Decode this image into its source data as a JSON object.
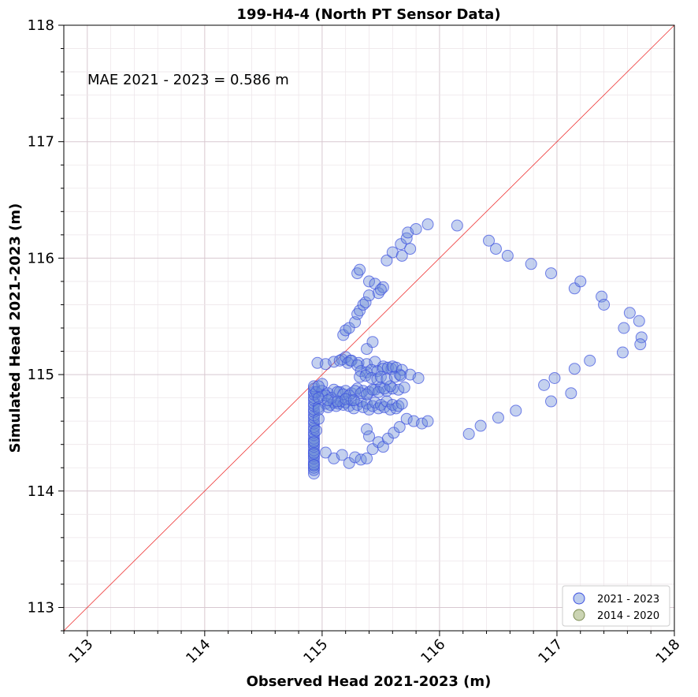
{
  "chart_data": {
    "type": "scatter",
    "title": "199-H4-4 (North PT Sensor Data)",
    "xlabel": "Observed Head 2021-2023 (m)",
    "ylabel": "Simulated Head 2021-2023 (m)",
    "xlim": [
      112.8,
      118
    ],
    "ylim": [
      112.8,
      118
    ],
    "xticks": [
      113,
      114,
      115,
      116,
      117,
      118
    ],
    "yticks": [
      113,
      114,
      115,
      116,
      117,
      118
    ],
    "grid": true,
    "annotation": "MAE 2021 - 2023 = 0.586 m",
    "legend_position": "lower-right",
    "reference_line": {
      "from": [
        112.8,
        112.8
      ],
      "to": [
        118,
        118
      ],
      "color": "#ee3333"
    },
    "series": [
      {
        "name": "2021 - 2023",
        "face_color": "#6b8dd6",
        "edge_color": "#3a4ee0",
        "x": [
          114.93,
          114.93,
          114.93,
          114.93,
          114.93,
          114.93,
          114.93,
          114.93,
          114.93,
          114.93,
          114.93,
          114.93,
          114.93,
          114.93,
          114.93,
          114.93,
          114.93,
          114.93,
          114.93,
          114.93,
          114.93,
          114.93,
          114.93,
          114.93,
          114.93,
          114.93,
          114.93,
          114.93,
          114.93,
          114.93,
          114.93,
          114.93,
          114.93,
          114.93,
          114.95,
          114.97,
          114.97,
          115.0,
          115.0,
          115.03,
          115.05,
          115.07,
          115.1,
          115.12,
          115.14,
          115.16,
          115.18,
          115.2,
          115.23,
          115.25,
          115.27,
          115.3,
          115.33,
          115.35,
          115.38,
          115.4,
          115.43,
          115.45,
          115.48,
          115.5,
          115.53,
          115.55,
          115.58,
          115.6,
          115.63,
          115.65,
          115.68,
          114.95,
          115.0,
          115.05,
          115.1,
          115.15,
          115.2,
          115.25,
          115.3,
          115.35,
          115.4,
          115.45,
          115.5,
          115.55,
          115.6,
          115.65,
          115.7,
          114.97,
          115.03,
          115.08,
          115.13,
          115.18,
          115.23,
          115.28,
          115.33,
          115.38,
          115.43,
          115.48,
          115.53,
          115.58,
          114.96,
          115.03,
          115.1,
          115.17,
          115.24,
          115.31,
          115.38,
          115.45,
          115.52,
          115.59,
          115.66,
          115.15,
          115.2,
          115.22,
          115.25,
          115.3,
          115.33,
          115.38,
          115.42,
          115.47,
          115.52,
          115.56,
          115.6,
          115.63,
          115.68,
          115.75,
          115.82,
          114.97,
          115.05,
          115.13,
          115.2,
          115.27,
          115.32,
          115.37,
          115.42,
          115.47,
          115.5,
          115.55,
          115.62,
          115.67,
          114.97,
          115.03,
          115.1,
          115.17,
          115.23,
          115.28,
          115.33,
          115.38,
          115.43,
          115.48,
          115.52,
          115.56,
          115.61,
          115.66,
          115.72,
          115.78,
          115.85,
          115.9,
          115.18,
          115.2,
          115.23,
          115.28,
          115.3,
          115.32,
          115.35,
          115.37,
          115.4,
          115.38,
          115.43,
          115.4,
          115.45,
          115.48,
          115.52,
          115.5,
          115.55,
          115.6,
          115.67,
          115.72,
          115.68,
          115.75,
          115.73,
          115.8,
          115.9,
          115.4,
          115.38,
          115.3,
          115.32,
          116.15,
          116.42,
          116.48,
          116.58,
          116.78,
          116.95,
          117.15,
          117.2,
          117.38,
          117.4,
          117.62,
          117.7,
          117.57,
          117.72,
          117.71,
          117.56,
          117.28,
          117.15,
          116.98,
          116.89,
          116.95,
          117.12,
          116.65,
          116.5,
          116.35,
          116.25
        ],
        "y": [
          114.15,
          114.18,
          114.2,
          114.23,
          114.25,
          114.28,
          114.3,
          114.33,
          114.35,
          114.38,
          114.4,
          114.43,
          114.45,
          114.48,
          114.5,
          114.53,
          114.55,
          114.58,
          114.6,
          114.63,
          114.65,
          114.68,
          114.7,
          114.73,
          114.75,
          114.78,
          114.8,
          114.83,
          114.85,
          114.88,
          114.9,
          114.22,
          114.32,
          114.42,
          114.52,
          114.62,
          114.72,
          114.82,
          114.92,
          114.75,
          114.72,
          114.74,
          114.76,
          114.73,
          114.75,
          114.77,
          114.74,
          114.76,
          114.73,
          114.78,
          114.71,
          114.74,
          114.77,
          114.72,
          114.75,
          114.7,
          114.73,
          114.76,
          114.71,
          114.74,
          114.72,
          114.77,
          114.7,
          114.74,
          114.71,
          114.73,
          114.75,
          114.85,
          114.86,
          114.84,
          114.87,
          114.85,
          114.86,
          114.84,
          114.88,
          114.86,
          114.85,
          114.87,
          114.89,
          114.86,
          114.88,
          114.87,
          114.89,
          114.9,
          114.82,
          114.8,
          114.85,
          114.83,
          114.82,
          114.86,
          114.84,
          114.83,
          114.87,
          114.85,
          114.88,
          114.9,
          115.1,
          115.09,
          115.11,
          115.13,
          115.12,
          115.1,
          115.09,
          115.11,
          115.07,
          115.05,
          115.0,
          115.12,
          115.15,
          115.1,
          115.12,
          115.08,
          115.03,
          115.02,
          115.04,
          115.03,
          115.05,
          115.06,
          115.07,
          115.06,
          115.04,
          115.0,
          114.97,
          114.8,
          114.78,
          114.77,
          114.79,
          114.78,
          114.98,
          114.99,
          114.97,
          114.96,
          114.98,
          114.96,
          114.98,
          114.99,
          114.7,
          114.33,
          114.28,
          114.31,
          114.24,
          114.29,
          114.27,
          114.28,
          114.36,
          114.42,
          114.38,
          114.45,
          114.5,
          114.55,
          114.62,
          114.6,
          114.58,
          114.6,
          115.34,
          115.38,
          115.4,
          115.45,
          115.52,
          115.55,
          115.6,
          115.62,
          115.68,
          115.22,
          115.28,
          115.8,
          115.78,
          115.7,
          115.75,
          115.73,
          115.98,
          116.05,
          116.12,
          116.17,
          116.02,
          116.08,
          116.22,
          116.25,
          116.29,
          114.47,
          114.53,
          115.87,
          115.9,
          116.28,
          116.15,
          116.08,
          116.02,
          115.95,
          115.87,
          115.74,
          115.8,
          115.67,
          115.6,
          115.53,
          115.46,
          115.4,
          115.32,
          115.26,
          115.19,
          115.12,
          115.05,
          114.97,
          114.91,
          114.77,
          114.84,
          114.69,
          114.63,
          114.56,
          114.49
        ]
      },
      {
        "name": "2014 - 2020",
        "face_color": "#a8b880",
        "edge_color": "#7a8a50",
        "x": [],
        "y": []
      }
    ]
  }
}
